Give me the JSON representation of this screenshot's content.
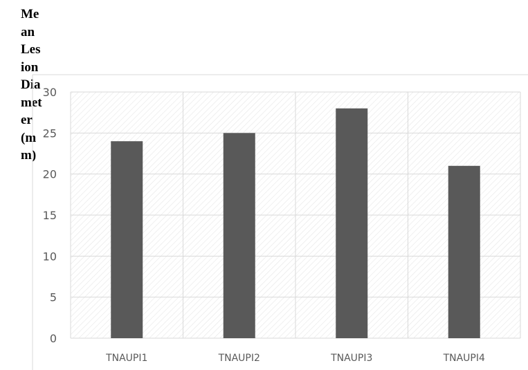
{
  "chart_data": {
    "type": "bar",
    "title": "",
    "xlabel": "",
    "ylabel": "Mean Lesion Diameter(mm)",
    "categories": [
      "TNAUPI1",
      "TNAUPI2",
      "TNAUPI3",
      "TNAUPI4"
    ],
    "values": [
      24,
      25,
      28,
      21
    ],
    "ylim": [
      0,
      30
    ],
    "yticks": [
      0,
      5,
      10,
      15,
      20,
      25,
      30
    ],
    "grid": true,
    "legend": "none",
    "colors": {
      "bar": "#595959",
      "grid": "#d9d9d9",
      "hatch": "#e6e6e6",
      "text": "#595959",
      "frame": "#d9d9d9"
    }
  }
}
